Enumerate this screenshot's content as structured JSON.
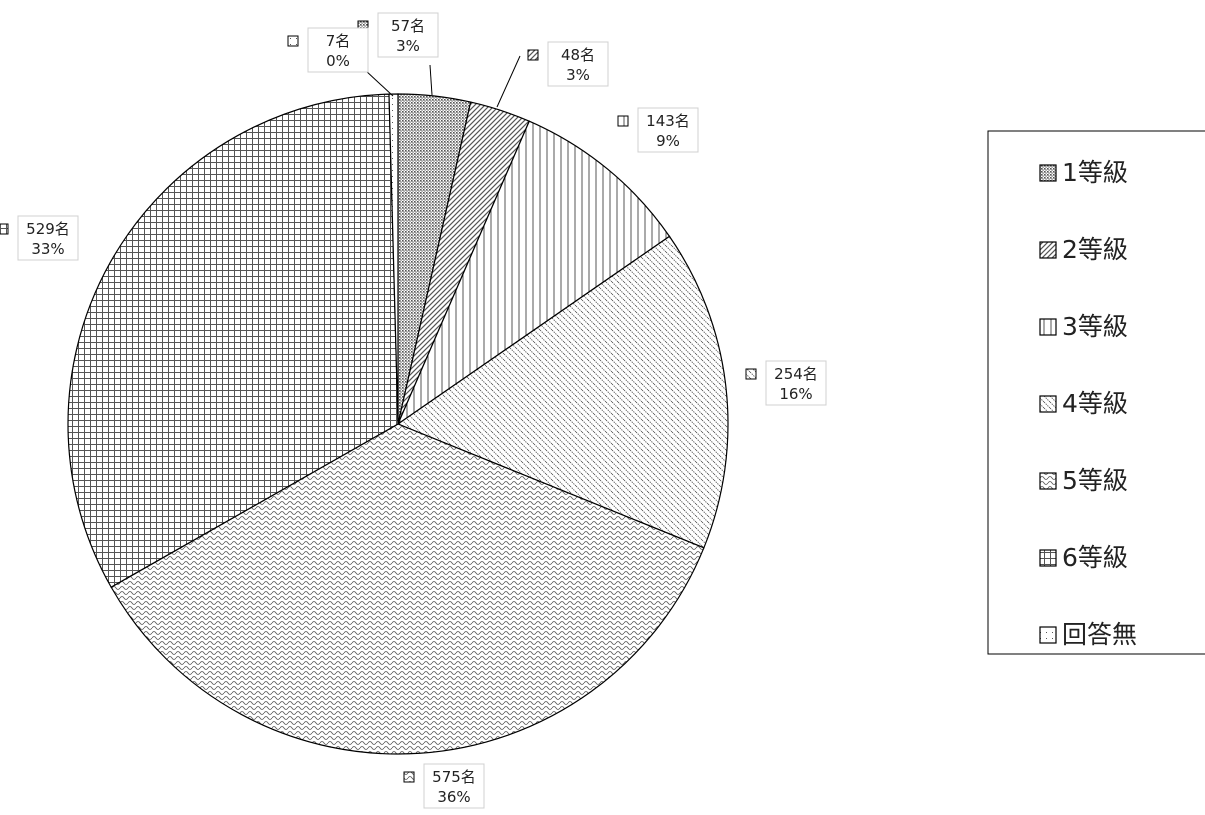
{
  "chart_data": {
    "type": "pie",
    "unit_suffix": "名",
    "slices": [
      {
        "category": "1等級",
        "count": 57,
        "count_label": "57名",
        "percent_label": "3%",
        "pattern": "dense-dots"
      },
      {
        "category": "2等級",
        "count": 48,
        "count_label": "48名",
        "percent_label": "3%",
        "pattern": "diagonal-hatch"
      },
      {
        "category": "3等級",
        "count": 143,
        "count_label": "143名",
        "percent_label": "9%",
        "pattern": "vertical-lines"
      },
      {
        "category": "4等級",
        "count": 254,
        "count_label": "254名",
        "percent_label": "16%",
        "pattern": "fine-diagonal"
      },
      {
        "category": "5等級",
        "count": 575,
        "count_label": "575名",
        "percent_label": "36%",
        "pattern": "wave"
      },
      {
        "category": "6等級",
        "count": 529,
        "count_label": "529名",
        "percent_label": "33%",
        "pattern": "grid"
      },
      {
        "category": "回答無",
        "count": 7,
        "count_label": "7名",
        "percent_label": "0%",
        "pattern": "sparse-dots"
      }
    ],
    "legend": {
      "placement": "right",
      "border": true
    },
    "grid": false
  },
  "colors": {
    "stroke": "#000000",
    "pattern_ink": "#555555",
    "background": "#ffffff"
  }
}
